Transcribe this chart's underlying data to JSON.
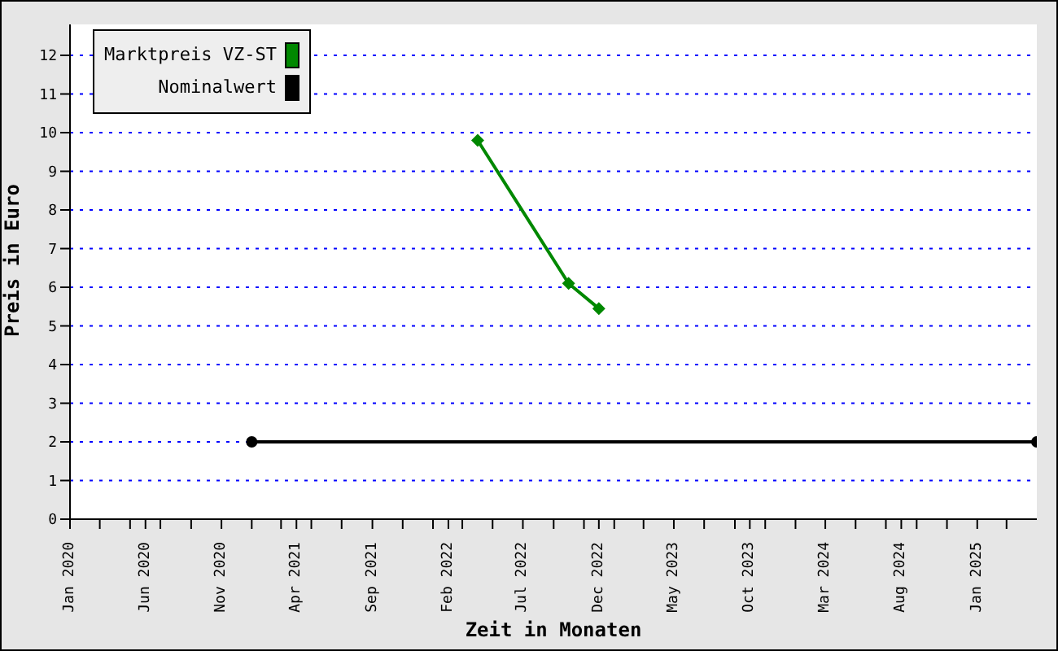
{
  "chart_data": {
    "type": "line",
    "xlabel": "Zeit in Monaten",
    "ylabel": "Preis in Euro",
    "xlim": [
      "2020-01",
      "2025-05"
    ],
    "xticks": [
      {
        "value": "2020-01",
        "label": "Jan 2020"
      },
      {
        "value": "2020-03",
        "label": null
      },
      {
        "value": "2020-05",
        "label": null
      },
      {
        "value": "2020-06",
        "label": "Jun 2020"
      },
      {
        "value": "2020-07",
        "label": null
      },
      {
        "value": "2020-09",
        "label": null
      },
      {
        "value": "2020-11",
        "label": "Nov 2020"
      },
      {
        "value": "2021-01",
        "label": null
      },
      {
        "value": "2021-03",
        "label": null
      },
      {
        "value": "2021-04",
        "label": "Apr 2021"
      },
      {
        "value": "2021-05",
        "label": null
      },
      {
        "value": "2021-07",
        "label": null
      },
      {
        "value": "2021-09",
        "label": "Sep 2021"
      },
      {
        "value": "2021-11",
        "label": null
      },
      {
        "value": "2022-01",
        "label": null
      },
      {
        "value": "2022-02",
        "label": "Feb 2022"
      },
      {
        "value": "2022-03",
        "label": null
      },
      {
        "value": "2022-05",
        "label": null
      },
      {
        "value": "2022-07",
        "label": "Jul 2022"
      },
      {
        "value": "2022-09",
        "label": null
      },
      {
        "value": "2022-11",
        "label": null
      },
      {
        "value": "2022-12",
        "label": "Dec 2022"
      },
      {
        "value": "2023-01",
        "label": null
      },
      {
        "value": "2023-03",
        "label": null
      },
      {
        "value": "2023-05",
        "label": "May 2023"
      },
      {
        "value": "2023-07",
        "label": null
      },
      {
        "value": "2023-09",
        "label": null
      },
      {
        "value": "2023-10",
        "label": "Oct 2023"
      },
      {
        "value": "2023-11",
        "label": null
      },
      {
        "value": "2024-01",
        "label": null
      },
      {
        "value": "2024-03",
        "label": "Mar 2024"
      },
      {
        "value": "2024-05",
        "label": null
      },
      {
        "value": "2024-07",
        "label": null
      },
      {
        "value": "2024-08",
        "label": "Aug 2024"
      },
      {
        "value": "2024-09",
        "label": null
      },
      {
        "value": "2024-11",
        "label": null
      },
      {
        "value": "2025-01",
        "label": "Jan 2025"
      },
      {
        "value": "2025-03",
        "label": null
      }
    ],
    "ylim": [
      0,
      12.8
    ],
    "yticks": [
      0,
      1,
      2,
      3,
      4,
      5,
      6,
      7,
      8,
      9,
      10,
      11,
      12
    ],
    "grid": "y",
    "legend": "top left",
    "series": [
      {
        "name": "Marktpreis VZ-ST",
        "color": "#008800",
        "marker": "diamond",
        "x": [
          "2022-04",
          "2022-10",
          "2022-12"
        ],
        "values": [
          9.8,
          6.1,
          5.45
        ]
      },
      {
        "name": "Nominalwert",
        "color": "#000000",
        "marker": "circle",
        "x": [
          "2021-01",
          "2025-05"
        ],
        "values": [
          2,
          2
        ]
      }
    ]
  }
}
